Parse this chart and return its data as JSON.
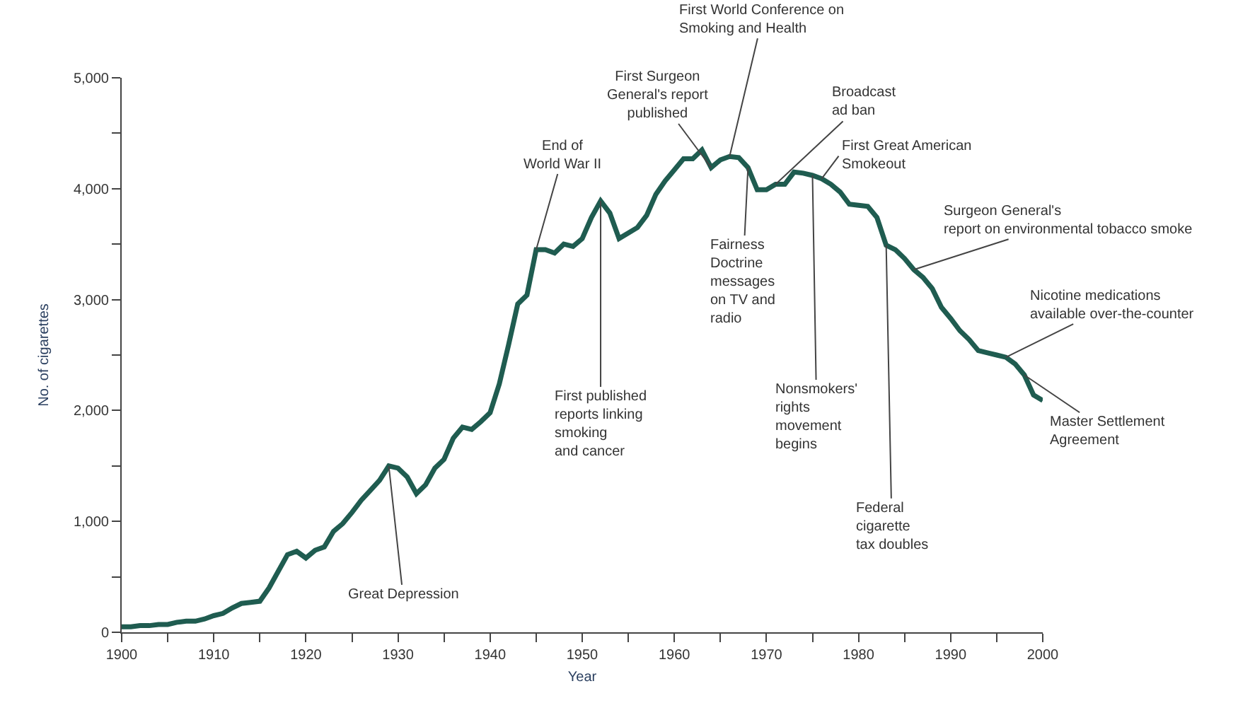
{
  "chart_data": {
    "type": "line",
    "xlabel": "Year",
    "ylabel": "No. of cigarettes",
    "x": [
      1900,
      1901,
      1902,
      1903,
      1904,
      1905,
      1906,
      1907,
      1908,
      1909,
      1910,
      1911,
      1912,
      1913,
      1914,
      1915,
      1916,
      1917,
      1918,
      1919,
      1920,
      1921,
      1922,
      1923,
      1924,
      1925,
      1926,
      1927,
      1928,
      1929,
      1930,
      1931,
      1932,
      1933,
      1934,
      1935,
      1936,
      1937,
      1938,
      1939,
      1940,
      1941,
      1942,
      1943,
      1944,
      1945,
      1946,
      1947,
      1948,
      1949,
      1950,
      1951,
      1952,
      1953,
      1954,
      1955,
      1956,
      1957,
      1958,
      1959,
      1960,
      1961,
      1962,
      1963,
      1964,
      1965,
      1966,
      1967,
      1968,
      1969,
      1970,
      1971,
      1972,
      1973,
      1974,
      1975,
      1976,
      1977,
      1978,
      1979,
      1980,
      1981,
      1982,
      1983,
      1984,
      1985,
      1986,
      1987,
      1988,
      1989,
      1990,
      1991,
      1992,
      1993,
      1994,
      1995,
      1996,
      1997,
      1998,
      1999,
      2000
    ],
    "series": [
      {
        "color": "#1f5c50",
        "values": [
          50,
          50,
          60,
          60,
          70,
          70,
          90,
          100,
          100,
          120,
          150,
          170,
          220,
          260,
          270,
          280,
          400,
          550,
          700,
          730,
          670,
          740,
          770,
          910,
          980,
          1080,
          1190,
          1280,
          1370,
          1500,
          1480,
          1400,
          1250,
          1330,
          1480,
          1560,
          1750,
          1850,
          1830,
          1900,
          1980,
          2240,
          2590,
          2960,
          3040,
          3450,
          3450,
          3420,
          3500,
          3480,
          3550,
          3740,
          3890,
          3780,
          3550,
          3600,
          3650,
          3760,
          3950,
          4070,
          4170,
          4270,
          4270,
          4350,
          4190,
          4260,
          4290,
          4280,
          4190,
          3990,
          3990,
          4040,
          4040,
          4150,
          4140,
          4120,
          4090,
          4040,
          3970,
          3860,
          3850,
          3840,
          3740,
          3490,
          3450,
          3370,
          3270,
          3200,
          3100,
          2930,
          2830,
          2720,
          2640,
          2540,
          2520,
          2500,
          2480,
          2420,
          2320,
          2140,
          2090
        ]
      }
    ],
    "xlim": [
      1900,
      2000
    ],
    "xticks": [
      1900,
      {
        "value": 1905,
        "label": null
      },
      1910,
      {
        "value": 1915,
        "label": null
      },
      1920,
      {
        "value": 1925,
        "label": null
      },
      1930,
      {
        "value": 1935,
        "label": null
      },
      1940,
      {
        "value": 1945,
        "label": null
      },
      1950,
      {
        "value": 1955,
        "label": null
      },
      1960,
      {
        "value": 1965,
        "label": null
      },
      1970,
      {
        "value": 1975,
        "label": null
      },
      1980,
      {
        "value": 1985,
        "label": null
      },
      1990,
      {
        "value": 1995,
        "label": null
      },
      2000
    ],
    "ylim": [
      0,
      5000
    ],
    "yticks": [
      {
        "value": 0,
        "label": "0"
      },
      {
        "value": 500,
        "label": null
      },
      {
        "value": 1000,
        "label": "1,000"
      },
      {
        "value": 1500,
        "label": null
      },
      {
        "value": 2000,
        "label": "2,000"
      },
      {
        "value": 2500,
        "label": null
      },
      {
        "value": 3000,
        "label": "3,000"
      },
      {
        "value": 3500,
        "label": null
      },
      {
        "value": 4000,
        "label": "4,000"
      },
      {
        "value": 4500,
        "label": null
      },
      {
        "value": 5000,
        "label": "5,000"
      }
    ],
    "marker": "none",
    "line_style": "solid",
    "annotations": [
      {
        "text": "End of\nWorld War II",
        "x": 1945,
        "y": 3450
      },
      {
        "text": "First published\nreports linking\nsmoking\nand cancer",
        "x": 1952,
        "y": 3890
      },
      {
        "text": "First Surgeon\nGeneral's report\npublished",
        "x": 1964,
        "y": 4190
      },
      {
        "text": "First World Conference on\nSmoking and Health",
        "x": 1966,
        "y": 4290
      },
      {
        "text": "Broadcast\nad ban",
        "x": 1971,
        "y": 4040
      },
      {
        "text": "Fairness\nDoctrine\nmessages\non TV and\nradio",
        "x": 1968,
        "y": 4190
      },
      {
        "text": "First Great American\nSmokeout",
        "x": 1976,
        "y": 4090
      },
      {
        "text": "Nonsmokers'\nrights\nmovement\nbegins",
        "x": 1975,
        "y": 4120
      },
      {
        "text": "Federal\ncigarette\ntax doubles",
        "x": 1983,
        "y": 3490
      },
      {
        "text": "Surgeon General's\nreport on environmental tobacco smoke",
        "x": 1986,
        "y": 3270
      },
      {
        "text": "Nicotine medications\navailable over-the-counter",
        "x": 1996,
        "y": 2480
      },
      {
        "text": "Master Settlement\nAgreement",
        "x": 1998,
        "y": 2320
      },
      {
        "text": "Great Depression",
        "x": 1929,
        "y": 1500
      }
    ]
  }
}
